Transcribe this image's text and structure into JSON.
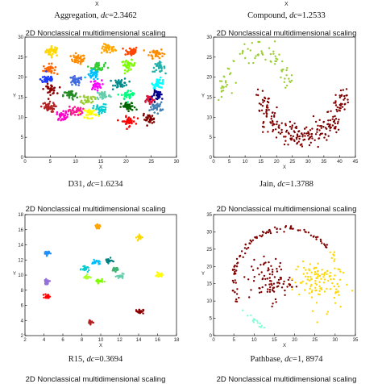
{
  "top_captions": [
    {
      "name": "Aggregation",
      "dc_label": "dc",
      "dc_value": "=2.3462"
    },
    {
      "name": "Compound",
      "dc_label": "dc",
      "dc_value": "=1.2533"
    }
  ],
  "top_x_labels": [
    "X",
    "X"
  ],
  "mid_captions": [
    {
      "name": "D31",
      "dc_label": "dc",
      "dc_value": "=1.6234"
    },
    {
      "name": "Jain",
      "dc_label": "dc",
      "dc_value": "=1.3788"
    }
  ],
  "bottom_captions": [
    {
      "name": "R15",
      "dc_label": "dc",
      "dc_value": "=0.3694"
    },
    {
      "name": "Pathbase",
      "dc_label": "dc",
      "dc_value": "=1, 8974"
    }
  ],
  "bottom_titles": [
    "2D Nonclassical multidimensional scaling",
    "2D Nonclassical multidimensional scaling"
  ],
  "chart_data": [
    {
      "type": "scatter",
      "title": "2D Nonclassical multidimensional scaling",
      "xlabel": "X",
      "ylabel": "Y",
      "xlim": [
        0,
        30
      ],
      "ylim": [
        0,
        30
      ],
      "xticks": [
        0,
        5,
        10,
        15,
        20,
        25,
        30
      ],
      "yticks": [
        0,
        5,
        10,
        15,
        20,
        25,
        30
      ],
      "clusters": [
        {
          "color": "#ffd700",
          "cx": 5.5,
          "cy": 26.5,
          "sx": 0.7,
          "sy": 0.6,
          "n": 38
        },
        {
          "color": "#ff8c00",
          "cx": 10.5,
          "cy": 24.5,
          "sx": 0.7,
          "sy": 0.6,
          "n": 38
        },
        {
          "color": "#ffa500",
          "cx": 16.5,
          "cy": 27.0,
          "sx": 0.7,
          "sy": 0.6,
          "n": 38
        },
        {
          "color": "#ff4500",
          "cx": 21.0,
          "cy": 26.5,
          "sx": 0.7,
          "sy": 0.6,
          "n": 38
        },
        {
          "color": "#ff8c00",
          "cx": 26.0,
          "cy": 26.0,
          "sx": 0.7,
          "sy": 0.6,
          "n": 38
        },
        {
          "color": "#ff6600",
          "cx": 4.8,
          "cy": 22.0,
          "sx": 0.6,
          "sy": 0.6,
          "n": 32
        },
        {
          "color": "#32cd32",
          "cx": 14.5,
          "cy": 22.5,
          "sx": 0.7,
          "sy": 0.6,
          "n": 38
        },
        {
          "color": "#7cfc00",
          "cx": 20.5,
          "cy": 23.0,
          "sx": 0.7,
          "sy": 0.6,
          "n": 38
        },
        {
          "color": "#20b2aa",
          "cx": 26.5,
          "cy": 22.5,
          "sx": 0.6,
          "sy": 0.6,
          "n": 32
        },
        {
          "color": "#1e3cff",
          "cx": 4.5,
          "cy": 19.5,
          "sx": 0.7,
          "sy": 0.6,
          "n": 38
        },
        {
          "color": "#4169e1",
          "cx": 10.0,
          "cy": 19.0,
          "sx": 0.7,
          "sy": 0.6,
          "n": 38
        },
        {
          "color": "#00bfff",
          "cx": 13.5,
          "cy": 20.5,
          "sx": 0.6,
          "sy": 0.6,
          "n": 32
        },
        {
          "color": "#008b8b",
          "cx": 19.0,
          "cy": 18.5,
          "sx": 0.7,
          "sy": 0.6,
          "n": 38
        },
        {
          "color": "#00ffff",
          "cx": 26.5,
          "cy": 18.5,
          "sx": 0.6,
          "sy": 0.6,
          "n": 32
        },
        {
          "color": "#8b0000",
          "cx": 5.0,
          "cy": 17.0,
          "sx": 0.6,
          "sy": 0.6,
          "n": 35
        },
        {
          "color": "#ff00ff",
          "cx": 14.0,
          "cy": 18.0,
          "sx": 0.6,
          "sy": 0.6,
          "n": 32
        },
        {
          "color": "#228b22",
          "cx": 9.0,
          "cy": 15.5,
          "sx": 0.7,
          "sy": 0.6,
          "n": 38
        },
        {
          "color": "#66cdaa",
          "cx": 15.5,
          "cy": 15.5,
          "sx": 0.7,
          "sy": 0.6,
          "n": 38
        },
        {
          "color": "#00ff7f",
          "cx": 20.5,
          "cy": 15.5,
          "sx": 0.7,
          "sy": 0.6,
          "n": 38
        },
        {
          "color": "#9acd32",
          "cx": 12.5,
          "cy": 14.5,
          "sx": 0.6,
          "sy": 0.6,
          "n": 32
        },
        {
          "color": "#dc143c",
          "cx": 24.5,
          "cy": 14.5,
          "sx": 0.6,
          "sy": 0.6,
          "n": 32
        },
        {
          "color": "#b22222",
          "cx": 4.5,
          "cy": 12.5,
          "sx": 0.7,
          "sy": 0.6,
          "n": 38
        },
        {
          "color": "#ff1493",
          "cx": 10.0,
          "cy": 11.5,
          "sx": 0.7,
          "sy": 0.6,
          "n": 38
        },
        {
          "color": "#00ced1",
          "cx": 15.0,
          "cy": 12.0,
          "sx": 0.7,
          "sy": 0.6,
          "n": 38
        },
        {
          "color": "#006400",
          "cx": 20.5,
          "cy": 12.5,
          "sx": 0.7,
          "sy": 0.6,
          "n": 38
        },
        {
          "color": "#4682b4",
          "cx": 26.0,
          "cy": 12.5,
          "sx": 0.6,
          "sy": 0.6,
          "n": 32
        },
        {
          "color": "#ff00cc",
          "cx": 7.5,
          "cy": 10.5,
          "sx": 0.6,
          "sy": 0.6,
          "n": 32
        },
        {
          "color": "#ff0000",
          "cx": 20.5,
          "cy": 9.0,
          "sx": 0.7,
          "sy": 0.6,
          "n": 38
        },
        {
          "color": "#800000",
          "cx": 24.5,
          "cy": 9.5,
          "sx": 0.6,
          "sy": 0.6,
          "n": 32
        },
        {
          "color": "#00008b",
          "cx": 26.5,
          "cy": 15.5,
          "sx": 0.6,
          "sy": 0.6,
          "n": 32
        },
        {
          "color": "#ffff00",
          "cx": 13.0,
          "cy": 11.0,
          "sx": 0.6,
          "sy": 0.6,
          "n": 32
        }
      ]
    },
    {
      "type": "scatter",
      "title": "2D Nonclassical multidimensional scaling",
      "xlabel": "X",
      "ylabel": "Y",
      "xlim": [
        0,
        45
      ],
      "ylim": [
        0,
        30
      ],
      "xticks": [
        0,
        5,
        10,
        15,
        20,
        25,
        30,
        35,
        40,
        45
      ],
      "yticks": [
        0,
        5,
        10,
        15,
        20,
        25,
        30
      ],
      "upper_moon": {
        "color": "#9acd32",
        "cx": 14,
        "cy": 14,
        "rx": 11,
        "ry": 12,
        "start": 20,
        "end": 175,
        "n": 80
      },
      "lower_moon": {
        "color": "#800000",
        "cx": 28,
        "cy": 17,
        "rx": 13,
        "ry": 12,
        "start": 185,
        "end": 355,
        "n": 240
      }
    },
    {
      "type": "scatter",
      "title": "2D Nonclassical multidimensional scaling",
      "xlabel": "X",
      "ylabel": "Y",
      "xlim": [
        2,
        18
      ],
      "ylim": [
        2,
        18
      ],
      "xticks": [
        2,
        4,
        6,
        8,
        10,
        12,
        14,
        16,
        18
      ],
      "yticks": [
        2,
        4,
        6,
        8,
        10,
        12,
        14,
        16,
        18
      ],
      "clusters": [
        {
          "color": "#ffa500",
          "cx": 9.7,
          "cy": 16.4,
          "sx": 0.15,
          "sy": 0.15,
          "n": 25
        },
        {
          "color": "#ffd700",
          "cx": 14.1,
          "cy": 15.0,
          "sx": 0.15,
          "sy": 0.15,
          "n": 25
        },
        {
          "color": "#1e90ff",
          "cx": 4.3,
          "cy": 12.9,
          "sx": 0.15,
          "sy": 0.15,
          "n": 25
        },
        {
          "color": "#00bfff",
          "cx": 9.5,
          "cy": 11.7,
          "sx": 0.2,
          "sy": 0.15,
          "n": 25
        },
        {
          "color": "#008080",
          "cx": 10.8,
          "cy": 11.9,
          "sx": 0.2,
          "sy": 0.15,
          "n": 25
        },
        {
          "color": "#3cb371",
          "cx": 11.5,
          "cy": 10.8,
          "sx": 0.2,
          "sy": 0.15,
          "n": 25
        },
        {
          "color": "#00ced1",
          "cx": 8.4,
          "cy": 10.8,
          "sx": 0.2,
          "sy": 0.15,
          "n": 25
        },
        {
          "color": "#66cdaa",
          "cx": 12.1,
          "cy": 9.8,
          "sx": 0.2,
          "sy": 0.15,
          "n": 25
        },
        {
          "color": "#7fff00",
          "cx": 9.8,
          "cy": 9.2,
          "sx": 0.2,
          "sy": 0.15,
          "n": 25
        },
        {
          "color": "#adff2f",
          "cx": 8.5,
          "cy": 9.7,
          "sx": 0.2,
          "sy": 0.15,
          "n": 25
        },
        {
          "color": "#ffff00",
          "cx": 16.2,
          "cy": 10.0,
          "sx": 0.15,
          "sy": 0.15,
          "n": 25
        },
        {
          "color": "#9370db",
          "cx": 4.3,
          "cy": 9.1,
          "sx": 0.15,
          "sy": 0.15,
          "n": 25
        },
        {
          "color": "#ff0000",
          "cx": 4.4,
          "cy": 7.2,
          "sx": 0.15,
          "sy": 0.15,
          "n": 25
        },
        {
          "color": "#8b0000",
          "cx": 14.1,
          "cy": 5.2,
          "sx": 0.2,
          "sy": 0.15,
          "n": 25
        },
        {
          "color": "#b22222",
          "cx": 8.9,
          "cy": 3.8,
          "sx": 0.15,
          "sy": 0.15,
          "n": 25
        }
      ]
    },
    {
      "type": "scatter",
      "title": "2D Nonclassical multidimensional scaling",
      "xlabel": "X",
      "ylabel": "Y",
      "xlim": [
        0,
        35
      ],
      "ylim": [
        0,
        35
      ],
      "xticks": [
        0,
        5,
        10,
        15,
        20,
        25,
        30,
        35
      ],
      "yticks": [
        0,
        5,
        10,
        15,
        20,
        25,
        30,
        35
      ],
      "ring": {
        "color": "#800000",
        "cx": 18,
        "cy": 16,
        "rx": 13,
        "ry": 15,
        "n": 95
      },
      "blob_left": {
        "color": "#800000",
        "cx": 14,
        "cy": 16,
        "sx": 2.6,
        "sy": 3.0,
        "n": 90
      },
      "blob_right": {
        "color": "#ffd700",
        "cx": 25,
        "cy": 16,
        "sx": 2.8,
        "sy": 3.0,
        "n": 95
      },
      "ring_right_arc": {
        "color": "#ffd700",
        "start": -60,
        "end": 35,
        "n": 22
      },
      "ring_left_arc": {
        "color": "#7fffd4",
        "start": 210,
        "end": 245,
        "n": 15
      }
    }
  ]
}
